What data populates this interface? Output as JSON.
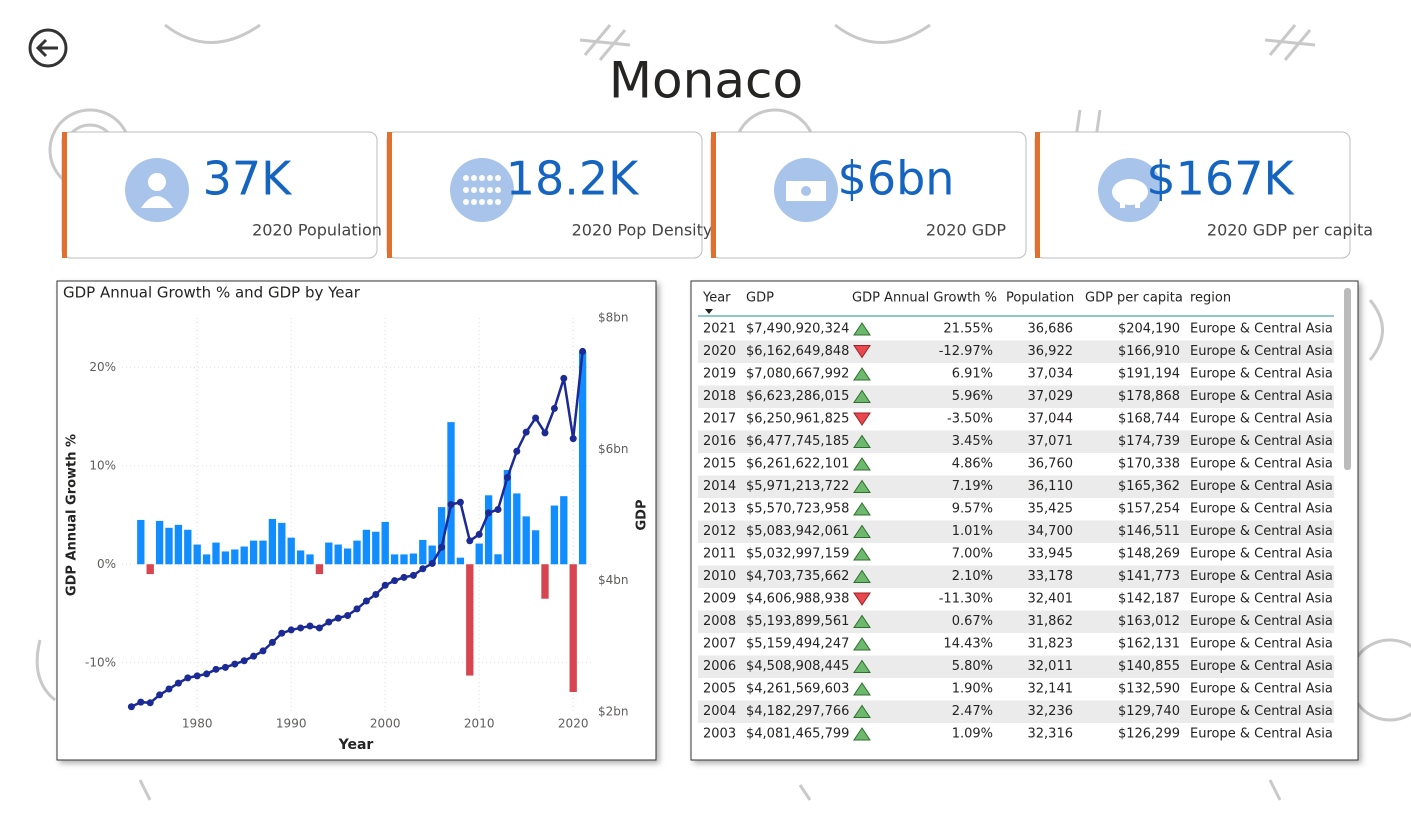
{
  "title": "Monaco",
  "kpis": [
    {
      "value": "37K",
      "label": "2020 Population"
    },
    {
      "value": "18.2K",
      "label": "2020 Pop Density"
    },
    {
      "value": "$6bn",
      "label": "2020 GDP"
    },
    {
      "value": "$167K",
      "label": "2020 GDP per capita"
    }
  ],
  "chart_data": {
    "type": "combo",
    "title": "GDP Annual Growth % and GDP by Year",
    "x_label": "Year",
    "y_label": "GDP Annual Growth %",
    "y2_label": "GDP",
    "x": [
      1973,
      1974,
      1975,
      1976,
      1977,
      1978,
      1979,
      1980,
      1981,
      1982,
      1983,
      1984,
      1985,
      1986,
      1987,
      1988,
      1989,
      1990,
      1991,
      1992,
      1993,
      1994,
      1995,
      1996,
      1997,
      1998,
      1999,
      2000,
      2001,
      2002,
      2003,
      2004,
      2005,
      2006,
      2007,
      2008,
      2009,
      2010,
      2011,
      2012,
      2013,
      2014,
      2015,
      2016,
      2017,
      2018,
      2019,
      2020,
      2021
    ],
    "series": [
      {
        "type": "bar",
        "color": "#118dff",
        "negative_color": "#d64550",
        "values": [
          null,
          4.5,
          -1.0,
          4.4,
          3.7,
          4.0,
          3.5,
          2.0,
          1.0,
          2.2,
          1.3,
          1.5,
          1.8,
          2.4,
          2.4,
          4.6,
          4.2,
          2.7,
          1.4,
          1.0,
          -1.0,
          2.2,
          2.0,
          1.6,
          2.4,
          3.5,
          3.3,
          4.3,
          1.0,
          1.0,
          1.09,
          2.47,
          1.9,
          5.8,
          14.43,
          0.67,
          -11.3,
          2.1,
          7.0,
          1.01,
          9.57,
          7.19,
          4.86,
          3.45,
          -3.5,
          5.96,
          6.91,
          -12.97,
          21.55
        ]
      },
      {
        "type": "line",
        "axis": "y2",
        "color": "#1b2a94",
        "values": [
          2.08,
          2.15,
          2.14,
          2.26,
          2.35,
          2.44,
          2.52,
          2.55,
          2.58,
          2.65,
          2.68,
          2.73,
          2.78,
          2.85,
          2.93,
          3.06,
          3.2,
          3.25,
          3.28,
          3.31,
          3.28,
          3.37,
          3.43,
          3.47,
          3.57,
          3.69,
          3.79,
          3.93,
          4.0,
          4.05,
          4.081,
          4.182,
          4.262,
          4.509,
          5.159,
          5.194,
          4.607,
          4.704,
          5.033,
          5.084,
          5.571,
          5.971,
          6.262,
          6.478,
          6.251,
          6.623,
          7.081,
          6.163,
          7.491
        ]
      }
    ],
    "xlim": [
      1972,
      2022
    ],
    "xticks": [
      1980,
      1990,
      2000,
      2010,
      2020
    ],
    "ylim": [
      -15,
      25
    ],
    "yticks": [
      {
        "value": 20,
        "label": "20%"
      },
      {
        "value": 10,
        "label": "10%"
      },
      {
        "value": 0,
        "label": "0%"
      },
      {
        "value": -10,
        "label": "-10%"
      }
    ],
    "y2lim": [
      2,
      8
    ],
    "y2ticks": [
      {
        "value": 8,
        "label": "$8bn"
      },
      {
        "value": 6,
        "label": "$6bn"
      },
      {
        "value": 4,
        "label": "$4bn"
      },
      {
        "value": 2,
        "label": "$2bn"
      }
    ],
    "grid": true
  },
  "table": {
    "columns": [
      "Year",
      "GDP",
      "GDP Annual Growth %",
      "Population",
      "GDP per capita",
      "region"
    ],
    "rows": [
      [
        "2021",
        "$7,490,920,324",
        "21.55%",
        "36,686",
        "$204,190",
        "Europe & Central Asia"
      ],
      [
        "2020",
        "$6,162,649,848",
        "-12.97%",
        "36,922",
        "$166,910",
        "Europe & Central Asia"
      ],
      [
        "2019",
        "$7,080,667,992",
        "6.91%",
        "37,034",
        "$191,194",
        "Europe & Central Asia"
      ],
      [
        "2018",
        "$6,623,286,015",
        "5.96%",
        "37,029",
        "$178,868",
        "Europe & Central Asia"
      ],
      [
        "2017",
        "$6,250,961,825",
        "-3.50%",
        "37,044",
        "$168,744",
        "Europe & Central Asia"
      ],
      [
        "2016",
        "$6,477,745,185",
        "3.45%",
        "37,071",
        "$174,739",
        "Europe & Central Asia"
      ],
      [
        "2015",
        "$6,261,622,101",
        "4.86%",
        "36,760",
        "$170,338",
        "Europe & Central Asia"
      ],
      [
        "2014",
        "$5,971,213,722",
        "7.19%",
        "36,110",
        "$165,362",
        "Europe & Central Asia"
      ],
      [
        "2013",
        "$5,570,723,958",
        "9.57%",
        "35,425",
        "$157,254",
        "Europe & Central Asia"
      ],
      [
        "2012",
        "$5,083,942,061",
        "1.01%",
        "34,700",
        "$146,511",
        "Europe & Central Asia"
      ],
      [
        "2011",
        "$5,032,997,159",
        "7.00%",
        "33,945",
        "$148,269",
        "Europe & Central Asia"
      ],
      [
        "2010",
        "$4,703,735,662",
        "2.10%",
        "33,178",
        "$141,773",
        "Europe & Central Asia"
      ],
      [
        "2009",
        "$4,606,988,938",
        "-11.30%",
        "32,401",
        "$142,187",
        "Europe & Central Asia"
      ],
      [
        "2008",
        "$5,193,899,561",
        "0.67%",
        "31,862",
        "$163,012",
        "Europe & Central Asia"
      ],
      [
        "2007",
        "$5,159,494,247",
        "14.43%",
        "31,823",
        "$162,131",
        "Europe & Central Asia"
      ],
      [
        "2006",
        "$4,508,908,445",
        "5.80%",
        "32,011",
        "$140,855",
        "Europe & Central Asia"
      ],
      [
        "2005",
        "$4,261,569,603",
        "1.90%",
        "32,141",
        "$132,590",
        "Europe & Central Asia"
      ],
      [
        "2004",
        "$4,182,297,766",
        "2.47%",
        "32,236",
        "$129,740",
        "Europe & Central Asia"
      ],
      [
        "2003",
        "$4,081,465,799",
        "1.09%",
        "32,316",
        "$126,299",
        "Europe & Central Asia"
      ]
    ]
  }
}
